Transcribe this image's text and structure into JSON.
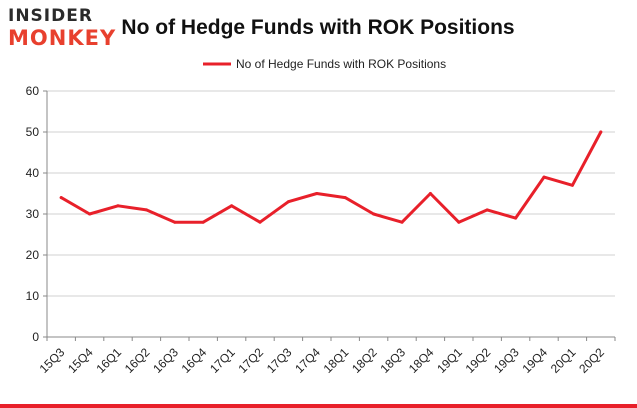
{
  "logo": {
    "line1": "INSIDER",
    "line2": "MONKEY"
  },
  "colors": {
    "series": "#e8202a",
    "grid": "#d0d0d0",
    "axis": "#888888"
  },
  "chart_data": {
    "type": "line",
    "title": "No of Hedge Funds with ROK Positions",
    "xlabel": "",
    "ylabel": "",
    "ylim": [
      0,
      60
    ],
    "yticks": [
      0,
      10,
      20,
      30,
      40,
      50,
      60
    ],
    "legend": "top-center",
    "categories": [
      "15Q3",
      "15Q4",
      "16Q1",
      "16Q2",
      "16Q3",
      "16Q4",
      "17Q1",
      "17Q2",
      "17Q3",
      "17Q4",
      "18Q1",
      "18Q2",
      "18Q3",
      "18Q4",
      "19Q1",
      "19Q2",
      "19Q3",
      "19Q4",
      "20Q1",
      "20Q2"
    ],
    "series": [
      {
        "name": "No of Hedge Funds with ROK Positions",
        "values": [
          34,
          30,
          32,
          31,
          28,
          28,
          32,
          28,
          33,
          35,
          34,
          30,
          28,
          35,
          28,
          31,
          29,
          39,
          37,
          50
        ]
      }
    ]
  }
}
